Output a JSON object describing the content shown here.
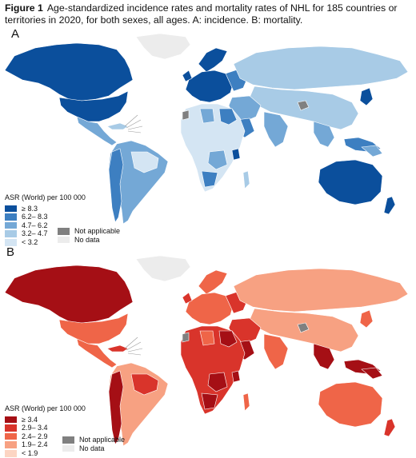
{
  "figure": {
    "label": "Figure 1",
    "caption": "Age-standardized incidence rates and mortality rates of NHL for 185 countries or territories in 2020, for both sexes, all ages. A: incidence. B: mortality."
  },
  "panels": [
    {
      "letter": "A",
      "legend_title": "ASR (World) per 100 000",
      "classes": [
        {
          "label": "≥ 8.3",
          "color": "#0b4f9c"
        },
        {
          "label": "6.2– 8.3",
          "color": "#3d7fc1"
        },
        {
          "label": "4.7– 6.2",
          "color": "#74a8d6"
        },
        {
          "label": "3.2– 4.7",
          "color": "#a8cbe6"
        },
        {
          "label": "< 3.2",
          "color": "#d4e5f3"
        }
      ],
      "not_applicable": {
        "label": "Not applicable",
        "color": "#808080"
      },
      "no_data": {
        "label": "No data",
        "color": "#ececec"
      }
    },
    {
      "letter": "B",
      "legend_title": "ASR (World) per 100 000",
      "classes": [
        {
          "label": "≥ 3.4",
          "color": "#a50f15"
        },
        {
          "label": "2.9– 3.4",
          "color": "#d9342b"
        },
        {
          "label": "2.4– 2.9",
          "color": "#ef6548"
        },
        {
          "label": "1.9– 2.4",
          "color": "#f7a182"
        },
        {
          "label": "< 1.9",
          "color": "#fcd5c3"
        }
      ],
      "not_applicable": {
        "label": "Not applicable",
        "color": "#808080"
      },
      "no_data": {
        "label": "No data",
        "color": "#ececec"
      }
    }
  ]
}
